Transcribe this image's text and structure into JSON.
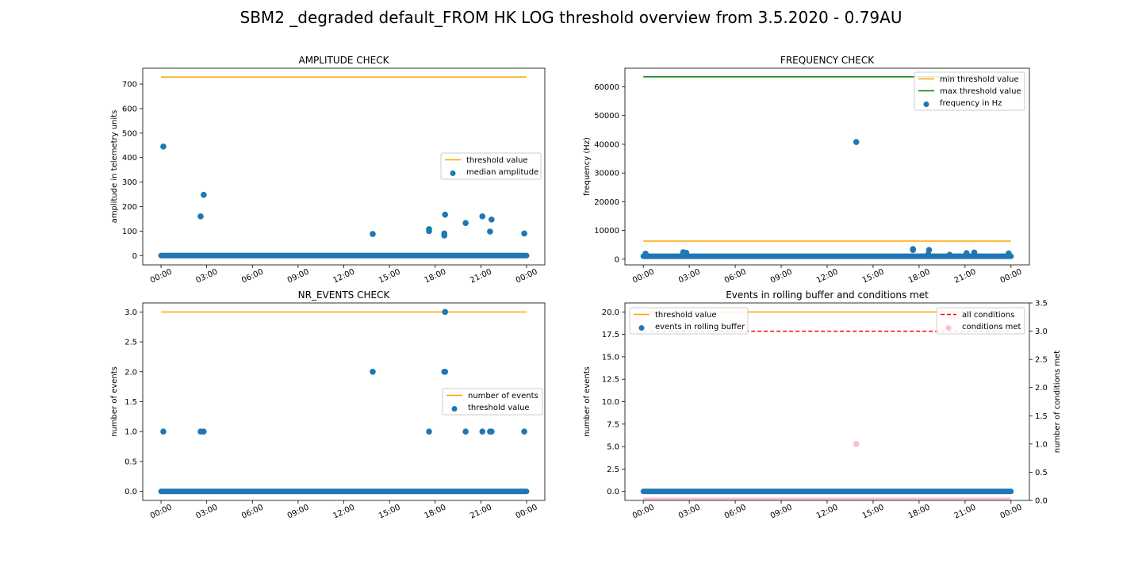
{
  "figure": {
    "title": "SBM2 _degraded default_FROM HK LOG threshold overview from 3.5.2020 - 0.79AU"
  },
  "colors": {
    "threshold": "#ffa500",
    "max_threshold": "#008000",
    "points": "#1f77b4",
    "all_conditions": "#ff0000",
    "conditions_met": "#ffc0cb"
  },
  "chart_data": [
    {
      "id": "amplitude",
      "type": "scatter",
      "title": "AMPLITUDE CHECK",
      "xlabel": "",
      "ylabel": "amplitude in telemetry units",
      "x_unit": "hours since 00:00 on 3.5.2020",
      "x_ticks": [
        0,
        3,
        6,
        9,
        12,
        15,
        18,
        21,
        24
      ],
      "x_tick_labels": [
        "00:00",
        "03:00",
        "06:00",
        "09:00",
        "12:00",
        "15:00",
        "18:00",
        "21:00",
        "00:00"
      ],
      "xlim": [
        -1.2,
        25.2
      ],
      "ylim": [
        -38,
        765
      ],
      "y_ticks": [
        0,
        100,
        200,
        300,
        400,
        500,
        600,
        700
      ],
      "y_tick_labels": [
        "0",
        "100",
        "200",
        "300",
        "400",
        "500",
        "600",
        "700"
      ],
      "legend": "center-right",
      "lines": [
        {
          "name": "threshold value",
          "x": [
            0,
            24
          ],
          "y": [
            729,
            729
          ],
          "style": "solid",
          "color_key": "threshold"
        }
      ],
      "baseline": {
        "x_start": 0,
        "x_end": 24,
        "y": 0
      },
      "series": [
        {
          "name": "median amplitude",
          "x": [
            0.15,
            2.6,
            2.8,
            13.9,
            17.6,
            17.6,
            18.6,
            18.6,
            18.65,
            20.0,
            21.1,
            21.6,
            21.7,
            23.85
          ],
          "y": [
            445,
            160,
            248,
            88,
            100,
            108,
            82,
            90,
            167,
            133,
            160,
            98,
            147,
            90
          ]
        }
      ],
      "legend_items": [
        {
          "label": "threshold value",
          "kind": "line",
          "color_key": "threshold"
        },
        {
          "label": "median amplitude",
          "kind": "marker",
          "color_key": "points"
        }
      ]
    },
    {
      "id": "frequency",
      "type": "scatter",
      "title": "FREQUENCY CHECK",
      "xlabel": "",
      "ylabel": "frequency (Hz)",
      "x_unit": "hours since 00:00 on 3.5.2020",
      "x_ticks": [
        0,
        3,
        6,
        9,
        12,
        15,
        18,
        21,
        24
      ],
      "x_tick_labels": [
        "00:00",
        "03:00",
        "06:00",
        "09:00",
        "12:00",
        "15:00",
        "18:00",
        "21:00",
        "00:00"
      ],
      "xlim": [
        -1.2,
        25.2
      ],
      "ylim": [
        -2000,
        66500
      ],
      "y_ticks": [
        0,
        10000,
        20000,
        30000,
        40000,
        50000,
        60000
      ],
      "y_tick_labels": [
        "0",
        "10000",
        "20000",
        "30000",
        "40000",
        "50000",
        "60000"
      ],
      "legend": "top-right",
      "lines": [
        {
          "name": "min threshold value",
          "x": [
            0,
            24
          ],
          "y": [
            6300,
            6300
          ],
          "style": "solid",
          "color_key": "threshold"
        },
        {
          "name": "max threshold value",
          "x": [
            0,
            24
          ],
          "y": [
            63500,
            63500
          ],
          "style": "solid",
          "color_key": "max_threshold"
        }
      ],
      "baseline": {
        "x_start": 0,
        "x_end": 24,
        "y": 1000
      },
      "series": [
        {
          "name": "frequency in Hz",
          "x": [
            0.15,
            2.6,
            2.8,
            13.9,
            17.6,
            17.6,
            18.6,
            18.65,
            20.0,
            21.1,
            21.6,
            23.85
          ],
          "y": [
            1900,
            2400,
            2200,
            40800,
            3200,
            3500,
            1700,
            3200,
            1500,
            2100,
            2300,
            2000
          ]
        }
      ],
      "legend_items": [
        {
          "label": "min threshold value",
          "kind": "line",
          "color_key": "threshold"
        },
        {
          "label": "max threshold value",
          "kind": "line",
          "color_key": "max_threshold"
        },
        {
          "label": "frequency in Hz",
          "kind": "marker",
          "color_key": "points"
        }
      ]
    },
    {
      "id": "nr_events",
      "type": "scatter",
      "title": "NR_EVENTS CHECK",
      "xlabel": "",
      "ylabel": "number of events",
      "x_unit": "hours since 00:00 on 3.5.2020",
      "x_ticks": [
        0,
        3,
        6,
        9,
        12,
        15,
        18,
        21,
        24
      ],
      "x_tick_labels": [
        "00:00",
        "03:00",
        "06:00",
        "09:00",
        "12:00",
        "15:00",
        "18:00",
        "21:00",
        "00:00"
      ],
      "xlim": [
        -1.2,
        25.2
      ],
      "ylim": [
        -0.15,
        3.15
      ],
      "y_ticks": [
        0,
        0.5,
        1,
        1.5,
        2,
        2.5,
        3
      ],
      "y_tick_labels": [
        "0.0",
        "0.5",
        "1.0",
        "1.5",
        "2.0",
        "2.5",
        "3.0"
      ],
      "legend": "center-right",
      "lines": [
        {
          "name": "number of events",
          "x": [
            0,
            24
          ],
          "y": [
            3,
            3
          ],
          "style": "solid",
          "color_key": "threshold"
        }
      ],
      "baseline": {
        "x_start": 0,
        "x_end": 24,
        "y": 0
      },
      "series": [
        {
          "name": "threshold value",
          "x": [
            0.15,
            2.6,
            2.8,
            13.9,
            17.6,
            18.6,
            18.65,
            18.65,
            20.0,
            21.1,
            21.6,
            21.7,
            23.85
          ],
          "y": [
            1,
            1,
            1,
            2,
            1,
            2,
            2,
            3,
            1,
            1,
            1,
            1,
            1
          ]
        }
      ],
      "legend_items": [
        {
          "label": "number of events",
          "kind": "line",
          "color_key": "threshold"
        },
        {
          "label": "threshold value",
          "kind": "marker",
          "color_key": "points"
        }
      ]
    },
    {
      "id": "rolling_buffer",
      "type": "scatter",
      "title": "Events in rolling buffer and conditions met",
      "xlabel": "",
      "ylabel": "number of events",
      "y2label": "number of conditions met",
      "x_unit": "hours since 00:00 on 3.5.2020",
      "x_ticks": [
        0,
        3,
        6,
        9,
        12,
        15,
        18,
        21,
        24
      ],
      "x_tick_labels": [
        "00:00",
        "03:00",
        "06:00",
        "09:00",
        "12:00",
        "15:00",
        "18:00",
        "21:00",
        "00:00"
      ],
      "xlim": [
        -1.2,
        25.2
      ],
      "ylim": [
        -1,
        21
      ],
      "y_ticks": [
        0,
        2.5,
        5,
        7.5,
        10,
        12.5,
        15,
        17.5,
        20
      ],
      "y_tick_labels": [
        "0.0",
        "2.5",
        "5.0",
        "7.5",
        "10.0",
        "12.5",
        "15.0",
        "17.5",
        "20.0"
      ],
      "y2lim": [
        0,
        3.5
      ],
      "y2_ticks": [
        0,
        0.5,
        1,
        1.5,
        2,
        2.5,
        3,
        3.5
      ],
      "y2_tick_labels": [
        "0.0",
        "0.5",
        "1.0",
        "1.5",
        "2.0",
        "2.5",
        "3.0",
        "3.5"
      ],
      "legend": "top-left and top-right",
      "lines": [
        {
          "name": "threshold value",
          "x": [
            0,
            24
          ],
          "y": [
            20,
            20
          ],
          "style": "solid",
          "color_key": "threshold",
          "axis": "left"
        },
        {
          "name": "all conditions",
          "x": [
            0,
            24
          ],
          "y": [
            3,
            3
          ],
          "style": "dashed",
          "color_key": "all_conditions",
          "axis": "right"
        }
      ],
      "baseline": {
        "x_start": 0,
        "x_end": 24,
        "y": 0
      },
      "baseline2": {
        "x_start": 0,
        "x_end": 24,
        "y": 0,
        "color_key": "conditions_met"
      },
      "series": [
        {
          "name": "events in rolling buffer",
          "x": [],
          "y": [],
          "axis": "left",
          "color_key": "points"
        },
        {
          "name": "conditions met",
          "x": [
            13.9
          ],
          "y": [
            1
          ],
          "axis": "right",
          "color_key": "conditions_met"
        }
      ],
      "legend_items": [
        {
          "label": "threshold value",
          "kind": "line",
          "color_key": "threshold",
          "group": "left"
        },
        {
          "label": "events in rolling buffer",
          "kind": "marker",
          "color_key": "points",
          "group": "left"
        },
        {
          "label": "all conditions",
          "kind": "dashed",
          "color_key": "all_conditions",
          "group": "right"
        },
        {
          "label": "conditions met",
          "kind": "marker",
          "color_key": "conditions_met",
          "group": "right"
        }
      ]
    }
  ]
}
